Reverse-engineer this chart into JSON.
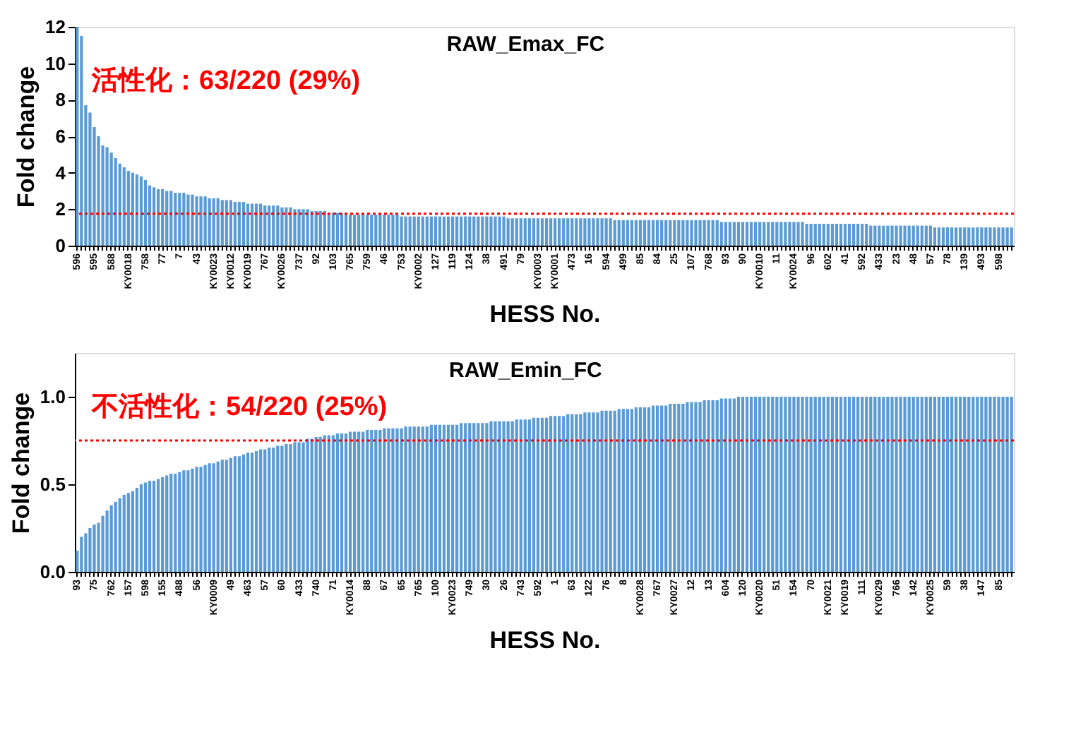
{
  "chart_data": [
    {
      "type": "bar",
      "title": "RAW_Emax_FC",
      "xlabel": "HESS No.",
      "ylabel": "Fold change",
      "color": "#5b9bd5",
      "categories": [
        "596",
        null,
        null,
        null,
        "595",
        null,
        null,
        null,
        "588",
        null,
        null,
        null,
        "KY0018",
        null,
        null,
        null,
        "758",
        null,
        null,
        null,
        "77",
        null,
        null,
        null,
        "7",
        null,
        null,
        null,
        "43",
        null,
        null,
        null,
        "KY0023",
        null,
        null,
        null,
        "KY0012",
        null,
        null,
        null,
        "KY0019",
        null,
        null,
        null,
        "767",
        null,
        null,
        null,
        "KY0026",
        null,
        null,
        null,
        "737",
        null,
        null,
        null,
        "92",
        null,
        null,
        null,
        "103",
        null,
        null,
        null,
        "765",
        null,
        null,
        null,
        "759",
        null,
        null,
        null,
        "46",
        null,
        null,
        null,
        "753",
        null,
        null,
        null,
        "KY0002",
        null,
        null,
        null,
        "127",
        null,
        null,
        null,
        "119",
        null,
        null,
        null,
        "124",
        null,
        null,
        null,
        "38",
        null,
        null,
        null,
        "491",
        null,
        null,
        null,
        "79",
        null,
        null,
        null,
        "KY0003",
        null,
        null,
        null,
        "KY0001",
        null,
        null,
        null,
        "473",
        null,
        null,
        null,
        "16",
        null,
        null,
        null,
        "594",
        null,
        null,
        null,
        "499",
        null,
        null,
        null,
        "85",
        null,
        null,
        null,
        "84",
        null,
        null,
        null,
        "25",
        null,
        null,
        null,
        "107",
        null,
        null,
        null,
        "768",
        null,
        null,
        null,
        "93",
        null,
        null,
        null,
        "90",
        null,
        null,
        null,
        "KY0010",
        null,
        null,
        null,
        "11",
        null,
        null,
        null,
        "KY0024",
        null,
        null,
        null,
        "96",
        null,
        null,
        null,
        "602",
        null,
        null,
        null,
        "41",
        null,
        null,
        null,
        "592",
        null,
        null,
        null,
        "433",
        null,
        null,
        null,
        "23",
        null,
        null,
        null,
        "48",
        null,
        null,
        null,
        "57",
        null,
        null,
        null,
        "78",
        null,
        null,
        null,
        "139",
        null,
        null,
        null,
        "493",
        null,
        null,
        null,
        "598",
        null,
        null,
        null
      ],
      "values": [
        12.0,
        11.5,
        7.7,
        7.3,
        6.5,
        6.0,
        5.5,
        5.4,
        5.1,
        4.8,
        4.5,
        4.3,
        4.1,
        4.0,
        3.9,
        3.8,
        3.6,
        3.3,
        3.2,
        3.1,
        3.1,
        3.0,
        3.0,
        2.9,
        2.9,
        2.9,
        2.8,
        2.8,
        2.7,
        2.7,
        2.7,
        2.6,
        2.6,
        2.6,
        2.5,
        2.5,
        2.5,
        2.4,
        2.4,
        2.4,
        2.3,
        2.3,
        2.3,
        2.3,
        2.2,
        2.2,
        2.2,
        2.2,
        2.1,
        2.1,
        2.1,
        2.0,
        2.0,
        2.0,
        2.0,
        1.9,
        1.9,
        1.9,
        1.9,
        1.8,
        1.8,
        1.8,
        1.8,
        1.7,
        1.7,
        1.7,
        1.7,
        1.7,
        1.7,
        1.7,
        1.7,
        1.7,
        1.7,
        1.7,
        1.7,
        1.7,
        1.6,
        1.6,
        1.6,
        1.6,
        1.6,
        1.6,
        1.6,
        1.6,
        1.6,
        1.6,
        1.6,
        1.6,
        1.6,
        1.6,
        1.6,
        1.6,
        1.6,
        1.6,
        1.6,
        1.6,
        1.6,
        1.6,
        1.6,
        1.6,
        1.6,
        1.5,
        1.5,
        1.5,
        1.5,
        1.5,
        1.5,
        1.5,
        1.5,
        1.5,
        1.5,
        1.5,
        1.5,
        1.5,
        1.5,
        1.5,
        1.5,
        1.5,
        1.5,
        1.5,
        1.5,
        1.5,
        1.5,
        1.5,
        1.5,
        1.5,
        1.4,
        1.4,
        1.4,
        1.4,
        1.4,
        1.4,
        1.4,
        1.4,
        1.4,
        1.4,
        1.4,
        1.4,
        1.4,
        1.4,
        1.4,
        1.4,
        1.4,
        1.4,
        1.4,
        1.4,
        1.4,
        1.4,
        1.4,
        1.4,
        1.4,
        1.3,
        1.3,
        1.3,
        1.3,
        1.3,
        1.3,
        1.3,
        1.3,
        1.3,
        1.3,
        1.3,
        1.3,
        1.3,
        1.3,
        1.3,
        1.3,
        1.3,
        1.3,
        1.3,
        1.3,
        1.2,
        1.2,
        1.2,
        1.2,
        1.2,
        1.2,
        1.2,
        1.2,
        1.2,
        1.2,
        1.2,
        1.2,
        1.2,
        1.2,
        1.2,
        1.1,
        1.1,
        1.1,
        1.1,
        1.1,
        1.1,
        1.1,
        1.1,
        1.1,
        1.1,
        1.1,
        1.1,
        1.1,
        1.1,
        1.1,
        1.0,
        1.0,
        1.0,
        1.0,
        1.0,
        1.0,
        1.0,
        1.0,
        1.0,
        1.0,
        1.0,
        1.0,
        1.0,
        1.0,
        1.0,
        1.0,
        1.0,
        1.0,
        1.0
      ],
      "ylim": [
        0,
        12
      ],
      "yticks": [
        0,
        2,
        4,
        6,
        8,
        10,
        12
      ],
      "ref_lines": [
        {
          "axis": "y",
          "value": 1.75,
          "color": "#ff0000",
          "line_style": "dotted"
        }
      ],
      "annotations": [
        "活性化：63/220 (29%)"
      ]
    },
    {
      "type": "bar",
      "title": "RAW_Emin_FC",
      "xlabel": "HESS No.",
      "ylabel": "Fold change",
      "color": "#5b9bd5",
      "categories": [
        "93",
        null,
        null,
        null,
        "75",
        null,
        null,
        null,
        "762",
        null,
        null,
        null,
        "157",
        null,
        null,
        null,
        "598",
        null,
        null,
        null,
        "155",
        null,
        null,
        null,
        "488",
        null,
        null,
        null,
        "56",
        null,
        null,
        null,
        "KY0009",
        null,
        null,
        null,
        "49",
        null,
        null,
        null,
        "463",
        null,
        null,
        null,
        "57",
        null,
        null,
        null,
        "60",
        null,
        null,
        null,
        "433",
        null,
        null,
        null,
        "740",
        null,
        null,
        null,
        "71",
        null,
        null,
        null,
        "KY0014",
        null,
        null,
        null,
        "88",
        null,
        null,
        null,
        "67",
        null,
        null,
        null,
        "65",
        null,
        null,
        null,
        "765",
        null,
        null,
        null,
        "100",
        null,
        null,
        null,
        "KY0023",
        null,
        null,
        null,
        "749",
        null,
        null,
        null,
        "30",
        null,
        null,
        null,
        "26",
        null,
        null,
        null,
        "743",
        null,
        null,
        null,
        "592",
        null,
        null,
        null,
        "1",
        null,
        null,
        null,
        "63",
        null,
        null,
        null,
        "122",
        null,
        null,
        null,
        "76",
        null,
        null,
        null,
        "8",
        null,
        null,
        null,
        "KY0028",
        null,
        null,
        null,
        "767",
        null,
        null,
        null,
        "KY0027",
        null,
        null,
        null,
        "12",
        null,
        null,
        null,
        "13",
        null,
        null,
        null,
        "604",
        null,
        null,
        null,
        "120",
        null,
        null,
        null,
        "KY0020",
        null,
        null,
        null,
        "51",
        null,
        null,
        null,
        "154",
        null,
        null,
        null,
        "70",
        null,
        null,
        null,
        "KY0021",
        null,
        null,
        null,
        "KY0019",
        null,
        null,
        null,
        "111",
        null,
        null,
        null,
        "KY0029",
        null,
        null,
        null,
        "766",
        null,
        null,
        null,
        "142",
        null,
        null,
        null,
        "KY0025",
        null,
        null,
        null,
        "59",
        null,
        null,
        null,
        "38",
        null,
        null,
        null,
        "147",
        null,
        null,
        null,
        "85",
        null,
        null,
        null
      ],
      "values": [
        0.12,
        0.2,
        0.22,
        0.25,
        0.27,
        0.28,
        0.32,
        0.35,
        0.38,
        0.4,
        0.42,
        0.44,
        0.45,
        0.46,
        0.48,
        0.5,
        0.51,
        0.52,
        0.52,
        0.53,
        0.54,
        0.55,
        0.56,
        0.56,
        0.57,
        0.58,
        0.58,
        0.59,
        0.6,
        0.6,
        0.61,
        0.62,
        0.62,
        0.63,
        0.64,
        0.64,
        0.65,
        0.66,
        0.66,
        0.67,
        0.68,
        0.68,
        0.69,
        0.7,
        0.7,
        0.71,
        0.71,
        0.72,
        0.72,
        0.73,
        0.73,
        0.74,
        0.74,
        0.74,
        0.76,
        0.76,
        0.77,
        0.77,
        0.78,
        0.78,
        0.78,
        0.79,
        0.79,
        0.79,
        0.8,
        0.8,
        0.8,
        0.8,
        0.81,
        0.81,
        0.81,
        0.81,
        0.82,
        0.82,
        0.82,
        0.82,
        0.82,
        0.83,
        0.83,
        0.83,
        0.83,
        0.83,
        0.83,
        0.84,
        0.84,
        0.84,
        0.84,
        0.84,
        0.84,
        0.84,
        0.85,
        0.85,
        0.85,
        0.85,
        0.85,
        0.85,
        0.85,
        0.86,
        0.86,
        0.86,
        0.86,
        0.86,
        0.86,
        0.87,
        0.87,
        0.87,
        0.87,
        0.88,
        0.88,
        0.88,
        0.88,
        0.89,
        0.89,
        0.89,
        0.89,
        0.9,
        0.9,
        0.9,
        0.9,
        0.91,
        0.91,
        0.91,
        0.91,
        0.92,
        0.92,
        0.92,
        0.92,
        0.93,
        0.93,
        0.93,
        0.93,
        0.94,
        0.94,
        0.94,
        0.94,
        0.95,
        0.95,
        0.95,
        0.95,
        0.96,
        0.96,
        0.96,
        0.96,
        0.97,
        0.97,
        0.97,
        0.97,
        0.98,
        0.98,
        0.98,
        0.98,
        0.99,
        0.99,
        0.99,
        0.99,
        1.0,
        1.0,
        1.0,
        1.0,
        1.0,
        1.0,
        1.0,
        1.0,
        1.0,
        1.0,
        1.0,
        1.0,
        1.0,
        1.0,
        1.0,
        1.0,
        1.0,
        1.0,
        1.0,
        1.0,
        1.0,
        1.0,
        1.0,
        1.0,
        1.0,
        1.0,
        1.0,
        1.0,
        1.0,
        1.0,
        1.0,
        1.0,
        1.0,
        1.0,
        1.0,
        1.0,
        1.0,
        1.0,
        1.0,
        1.0,
        1.0,
        1.0,
        1.0,
        1.0,
        1.0,
        1.0,
        1.0,
        1.0,
        1.0,
        1.0,
        1.0,
        1.0,
        1.0,
        1.0,
        1.0,
        1.0,
        1.0,
        1.0,
        1.0,
        1.0,
        1.0,
        1.0,
        1.0,
        1.0,
        1.0
      ],
      "ylim": [
        0,
        1.25
      ],
      "yticks": [
        {
          "value": 0,
          "label": "0.0"
        },
        {
          "value": 0.5,
          "label": "0.5"
        },
        {
          "value": 1.0,
          "label": "1.0"
        }
      ],
      "ref_lines": [
        {
          "axis": "y",
          "value": 0.75,
          "color": "#ff0000",
          "line_style": "dotted"
        }
      ],
      "annotations": [
        "不活性化：54/220 (25%)"
      ]
    }
  ]
}
